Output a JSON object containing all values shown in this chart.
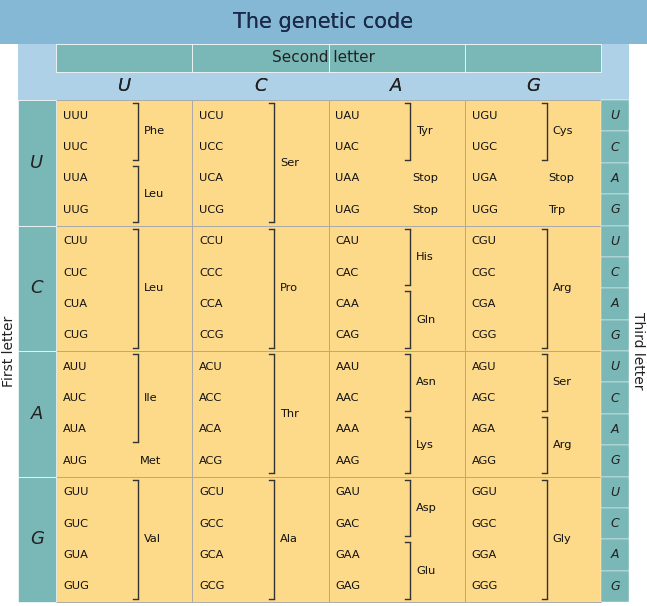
{
  "title": "The genetic code",
  "title_bg": "#85b8d4",
  "second_letter_label": "Second letter",
  "first_letter_label": "First letter",
  "third_letter_label": "Third letter",
  "header_letters": [
    "U",
    "C",
    "A",
    "G"
  ],
  "row_letters": [
    "U",
    "C",
    "A",
    "G"
  ],
  "header_bg": "#7ab8b8",
  "cell_bg": "#fdd98a",
  "side_bg": "#7ab8b8",
  "outer_bg": "#aed1e8",
  "cells": [
    [
      {
        "codons": [
          "UUU",
          "UUC",
          "UUA",
          "UUG"
        ],
        "aa_groups": [
          {
            "aa": "Phe",
            "lines": [
              0,
              1
            ]
          },
          {
            "aa": "Leu",
            "lines": [
              2,
              3
            ]
          }
        ]
      },
      {
        "codons": [
          "UCU",
          "UCC",
          "UCA",
          "UCG"
        ],
        "aa_groups": [
          {
            "aa": "Ser",
            "lines": [
              0,
              3
            ]
          }
        ]
      },
      {
        "codons": [
          "UAU",
          "UAC",
          "UAA",
          "UAG"
        ],
        "aa_groups": [
          {
            "aa": "Tyr",
            "lines": [
              0,
              1
            ]
          },
          {
            "aa": "Stop",
            "lines": [
              2,
              2
            ]
          },
          {
            "aa": "Stop",
            "lines": [
              3,
              3
            ]
          }
        ]
      },
      {
        "codons": [
          "UGU",
          "UGC",
          "UGA",
          "UGG"
        ],
        "aa_groups": [
          {
            "aa": "Cys",
            "lines": [
              0,
              1
            ]
          },
          {
            "aa": "Stop",
            "lines": [
              2,
              2
            ]
          },
          {
            "aa": "Trp",
            "lines": [
              3,
              3
            ]
          }
        ]
      }
    ],
    [
      {
        "codons": [
          "CUU",
          "CUC",
          "CUA",
          "CUG"
        ],
        "aa_groups": [
          {
            "aa": "Leu",
            "lines": [
              0,
              3
            ]
          }
        ]
      },
      {
        "codons": [
          "CCU",
          "CCC",
          "CCA",
          "CCG"
        ],
        "aa_groups": [
          {
            "aa": "Pro",
            "lines": [
              0,
              3
            ]
          }
        ]
      },
      {
        "codons": [
          "CAU",
          "CAC",
          "CAA",
          "CAG"
        ],
        "aa_groups": [
          {
            "aa": "His",
            "lines": [
              0,
              1
            ]
          },
          {
            "aa": "Gln",
            "lines": [
              2,
              3
            ]
          }
        ]
      },
      {
        "codons": [
          "CGU",
          "CGC",
          "CGA",
          "CGG"
        ],
        "aa_groups": [
          {
            "aa": "Arg",
            "lines": [
              0,
              3
            ]
          }
        ]
      }
    ],
    [
      {
        "codons": [
          "AUU",
          "AUC",
          "AUA",
          "AUG"
        ],
        "aa_groups": [
          {
            "aa": "Ile",
            "lines": [
              0,
              2
            ]
          },
          {
            "aa": "Met",
            "lines": [
              3,
              3
            ]
          }
        ]
      },
      {
        "codons": [
          "ACU",
          "ACC",
          "ACA",
          "ACG"
        ],
        "aa_groups": [
          {
            "aa": "Thr",
            "lines": [
              0,
              3
            ]
          }
        ]
      },
      {
        "codons": [
          "AAU",
          "AAC",
          "AAA",
          "AAG"
        ],
        "aa_groups": [
          {
            "aa": "Asn",
            "lines": [
              0,
              1
            ]
          },
          {
            "aa": "Lys",
            "lines": [
              2,
              3
            ]
          }
        ]
      },
      {
        "codons": [
          "AGU",
          "AGC",
          "AGA",
          "AGG"
        ],
        "aa_groups": [
          {
            "aa": "Ser",
            "lines": [
              0,
              1
            ]
          },
          {
            "aa": "Arg",
            "lines": [
              2,
              3
            ]
          }
        ]
      }
    ],
    [
      {
        "codons": [
          "GUU",
          "GUC",
          "GUA",
          "GUG"
        ],
        "aa_groups": [
          {
            "aa": "Val",
            "lines": [
              0,
              3
            ]
          }
        ]
      },
      {
        "codons": [
          "GCU",
          "GCC",
          "GCA",
          "GCG"
        ],
        "aa_groups": [
          {
            "aa": "Ala",
            "lines": [
              0,
              3
            ]
          }
        ]
      },
      {
        "codons": [
          "GAU",
          "GAC",
          "GAA",
          "GAG"
        ],
        "aa_groups": [
          {
            "aa": "Asp",
            "lines": [
              0,
              1
            ]
          },
          {
            "aa": "Glu",
            "lines": [
              2,
              3
            ]
          }
        ]
      },
      {
        "codons": [
          "GGU",
          "GGC",
          "GGA",
          "GGG"
        ],
        "aa_groups": [
          {
            "aa": "Gly",
            "lines": [
              0,
              3
            ]
          }
        ]
      }
    ]
  ]
}
